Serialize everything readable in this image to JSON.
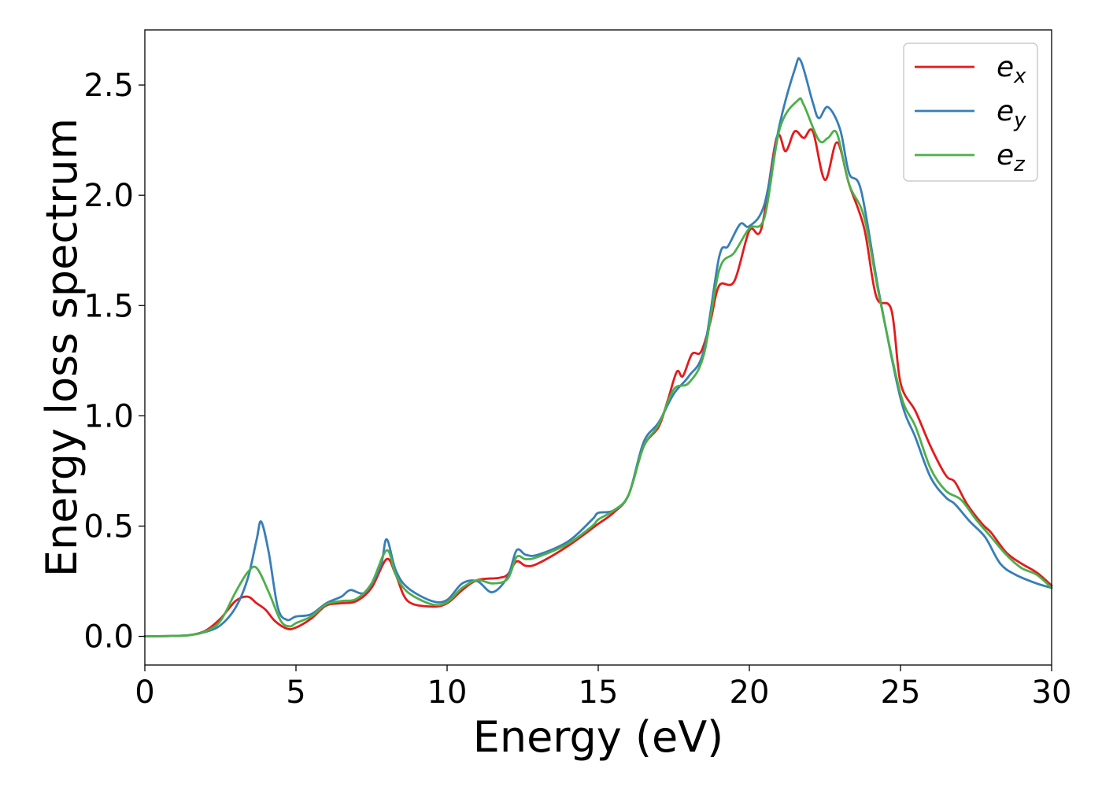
{
  "chart_data": {
    "type": "line",
    "title": "",
    "xlabel": "Energy (eV)",
    "ylabel": "Energy loss spectrum",
    "xlim": [
      0,
      30
    ],
    "ylim": [
      -0.13,
      2.75
    ],
    "xticks": [
      0,
      5,
      10,
      15,
      20,
      25,
      30
    ],
    "xtick_labels": [
      "0",
      "5",
      "10",
      "15",
      "20",
      "25",
      "30"
    ],
    "yticks": [
      0,
      0.5,
      1.0,
      1.5,
      2.0,
      2.5
    ],
    "ytick_labels": [
      "0.0",
      "0.5",
      "1.0",
      "1.5",
      "2.0",
      "2.5"
    ],
    "grid": false,
    "legend_position": "top-right",
    "series": [
      {
        "name": "ex",
        "label_base": "e",
        "label_sub": "x",
        "color": "#e41a1c",
        "points": [
          [
            0,
            0
          ],
          [
            1,
            0.002
          ],
          [
            1.5,
            0.006
          ],
          [
            2,
            0.025
          ],
          [
            2.5,
            0.08
          ],
          [
            3,
            0.16
          ],
          [
            3.4,
            0.18
          ],
          [
            3.7,
            0.15
          ],
          [
            4,
            0.12
          ],
          [
            4.3,
            0.07
          ],
          [
            4.7,
            0.035
          ],
          [
            5,
            0.04
          ],
          [
            5.5,
            0.08
          ],
          [
            6,
            0.14
          ],
          [
            6.5,
            0.15
          ],
          [
            7,
            0.16
          ],
          [
            7.5,
            0.22
          ],
          [
            8,
            0.35
          ],
          [
            8.3,
            0.28
          ],
          [
            8.7,
            0.16
          ],
          [
            9.5,
            0.135
          ],
          [
            10,
            0.15
          ],
          [
            10.5,
            0.21
          ],
          [
            11,
            0.255
          ],
          [
            11.7,
            0.265
          ],
          [
            12,
            0.28
          ],
          [
            12.3,
            0.34
          ],
          [
            12.6,
            0.32
          ],
          [
            13,
            0.33
          ],
          [
            14,
            0.41
          ],
          [
            15,
            0.51
          ],
          [
            15.5,
            0.56
          ],
          [
            16,
            0.64
          ],
          [
            16.5,
            0.86
          ],
          [
            17,
            0.95
          ],
          [
            17.3,
            1.07
          ],
          [
            17.6,
            1.2
          ],
          [
            17.8,
            1.18
          ],
          [
            18.1,
            1.28
          ],
          [
            18.4,
            1.29
          ],
          [
            18.7,
            1.42
          ],
          [
            19,
            1.59
          ],
          [
            19.5,
            1.61
          ],
          [
            20,
            1.84
          ],
          [
            20.4,
            1.85
          ],
          [
            20.9,
            2.26
          ],
          [
            21.2,
            2.2
          ],
          [
            21.5,
            2.29
          ],
          [
            21.8,
            2.26
          ],
          [
            22.1,
            2.29
          ],
          [
            22.5,
            2.07
          ],
          [
            22.9,
            2.24
          ],
          [
            23.3,
            2.05
          ],
          [
            23.8,
            1.85
          ],
          [
            24.2,
            1.54
          ],
          [
            24.7,
            1.48
          ],
          [
            25,
            1.15
          ],
          [
            25.5,
            1.02
          ],
          [
            26,
            0.86
          ],
          [
            26.5,
            0.73
          ],
          [
            26.8,
            0.7
          ],
          [
            27.2,
            0.6
          ],
          [
            27.7,
            0.51
          ],
          [
            28,
            0.47
          ],
          [
            28.5,
            0.38
          ],
          [
            29,
            0.33
          ],
          [
            29.5,
            0.29
          ],
          [
            30,
            0.23
          ]
        ]
      },
      {
        "name": "ey",
        "label_base": "e",
        "label_sub": "y",
        "color": "#377eb8",
        "points": [
          [
            0,
            0
          ],
          [
            1,
            0.002
          ],
          [
            1.5,
            0.006
          ],
          [
            2,
            0.02
          ],
          [
            2.5,
            0.05
          ],
          [
            3,
            0.13
          ],
          [
            3.4,
            0.26
          ],
          [
            3.7,
            0.44
          ],
          [
            3.85,
            0.52
          ],
          [
            4.1,
            0.38
          ],
          [
            4.4,
            0.13
          ],
          [
            4.7,
            0.075
          ],
          [
            5,
            0.09
          ],
          [
            5.5,
            0.1
          ],
          [
            6,
            0.15
          ],
          [
            6.5,
            0.18
          ],
          [
            6.8,
            0.21
          ],
          [
            7.3,
            0.2
          ],
          [
            7.8,
            0.32
          ],
          [
            8,
            0.44
          ],
          [
            8.3,
            0.3
          ],
          [
            8.7,
            0.22
          ],
          [
            9.5,
            0.16
          ],
          [
            10,
            0.165
          ],
          [
            10.5,
            0.24
          ],
          [
            11,
            0.25
          ],
          [
            11.5,
            0.2
          ],
          [
            12,
            0.27
          ],
          [
            12.3,
            0.39
          ],
          [
            12.6,
            0.37
          ],
          [
            13,
            0.37
          ],
          [
            14,
            0.43
          ],
          [
            14.8,
            0.53
          ],
          [
            15,
            0.56
          ],
          [
            15.5,
            0.57
          ],
          [
            16,
            0.64
          ],
          [
            16.5,
            0.88
          ],
          [
            17,
            0.97
          ],
          [
            17.5,
            1.1
          ],
          [
            18,
            1.18
          ],
          [
            18.5,
            1.3
          ],
          [
            19,
            1.72
          ],
          [
            19.3,
            1.77
          ],
          [
            19.7,
            1.87
          ],
          [
            20,
            1.86
          ],
          [
            20.5,
            1.96
          ],
          [
            21,
            2.32
          ],
          [
            21.5,
            2.57
          ],
          [
            21.7,
            2.61
          ],
          [
            22.1,
            2.42
          ],
          [
            22.3,
            2.35
          ],
          [
            22.6,
            2.4
          ],
          [
            23,
            2.3
          ],
          [
            23.3,
            2.1
          ],
          [
            23.7,
            2.02
          ],
          [
            24.3,
            1.55
          ],
          [
            25,
            1.08
          ],
          [
            25.5,
            0.9
          ],
          [
            26,
            0.72
          ],
          [
            26.5,
            0.63
          ],
          [
            26.8,
            0.6
          ],
          [
            27.3,
            0.52
          ],
          [
            27.8,
            0.45
          ],
          [
            28.3,
            0.33
          ],
          [
            28.8,
            0.28
          ],
          [
            29.5,
            0.24
          ],
          [
            30,
            0.22
          ]
        ]
      },
      {
        "name": "ez",
        "label_base": "e",
        "label_sub": "z",
        "color": "#4daf4a",
        "points": [
          [
            0,
            0
          ],
          [
            1,
            0.002
          ],
          [
            1.5,
            0.006
          ],
          [
            2,
            0.022
          ],
          [
            2.5,
            0.07
          ],
          [
            3,
            0.2
          ],
          [
            3.4,
            0.29
          ],
          [
            3.7,
            0.31
          ],
          [
            4.1,
            0.2
          ],
          [
            4.5,
            0.07
          ],
          [
            4.8,
            0.045
          ],
          [
            5,
            0.06
          ],
          [
            5.5,
            0.09
          ],
          [
            6,
            0.145
          ],
          [
            6.5,
            0.16
          ],
          [
            7,
            0.17
          ],
          [
            7.5,
            0.24
          ],
          [
            8,
            0.39
          ],
          [
            8.3,
            0.28
          ],
          [
            8.7,
            0.2
          ],
          [
            9.5,
            0.145
          ],
          [
            10,
            0.155
          ],
          [
            10.5,
            0.22
          ],
          [
            11,
            0.255
          ],
          [
            11.5,
            0.24
          ],
          [
            12,
            0.26
          ],
          [
            12.3,
            0.36
          ],
          [
            12.6,
            0.35
          ],
          [
            13,
            0.36
          ],
          [
            14,
            0.42
          ],
          [
            14.8,
            0.5
          ],
          [
            15,
            0.53
          ],
          [
            15.5,
            0.57
          ],
          [
            16,
            0.64
          ],
          [
            16.5,
            0.86
          ],
          [
            17,
            0.96
          ],
          [
            17.5,
            1.12
          ],
          [
            18,
            1.15
          ],
          [
            18.5,
            1.28
          ],
          [
            19,
            1.66
          ],
          [
            19.5,
            1.74
          ],
          [
            20,
            1.85
          ],
          [
            20.5,
            1.9
          ],
          [
            21,
            2.3
          ],
          [
            21.6,
            2.43
          ],
          [
            21.8,
            2.41
          ],
          [
            22.3,
            2.25
          ],
          [
            22.6,
            2.26
          ],
          [
            22.9,
            2.28
          ],
          [
            23.3,
            2.05
          ],
          [
            23.8,
            1.9
          ],
          [
            24.3,
            1.54
          ],
          [
            25,
            1.1
          ],
          [
            25.5,
            0.95
          ],
          [
            26,
            0.76
          ],
          [
            26.5,
            0.66
          ],
          [
            27,
            0.62
          ],
          [
            27.5,
            0.53
          ],
          [
            28,
            0.45
          ],
          [
            28.5,
            0.37
          ],
          [
            29,
            0.31
          ],
          [
            29.5,
            0.28
          ],
          [
            30,
            0.22
          ]
        ]
      }
    ]
  }
}
